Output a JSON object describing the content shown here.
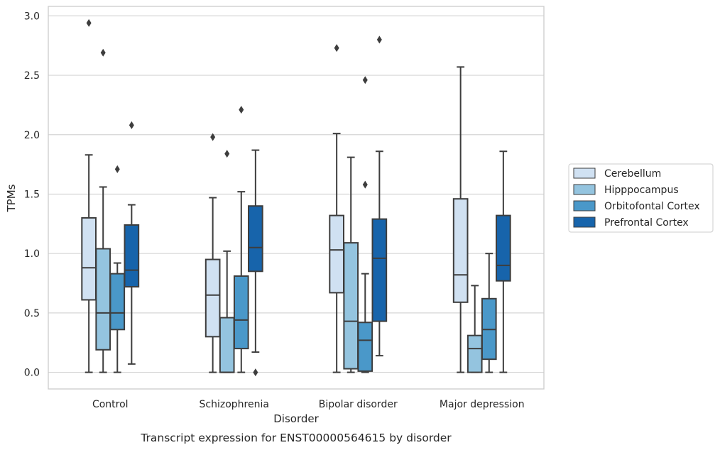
{
  "chart_data": {
    "type": "boxplot",
    "caption": "Transcript expression for ENST00000564615 by disorder",
    "xlabel": "Disorder",
    "ylabel": "TPMs",
    "ylim": [
      -0.14,
      3.08
    ],
    "yticks": [
      "0.0",
      "0.5",
      "1.0",
      "1.5",
      "2.0",
      "2.5",
      "3.0"
    ],
    "categories": [
      "Control",
      "Schizophrenia",
      "Bipolar disorder",
      "Major depression"
    ],
    "grid": true,
    "legend_position": "right",
    "series": [
      {
        "name": "Cerebellum",
        "color": "#d0e1f2",
        "boxes": [
          {
            "whislo": 0.0,
            "q1": 0.61,
            "med": 0.88,
            "q3": 1.3,
            "whishi": 1.83,
            "fliers": [
              2.94
            ]
          },
          {
            "whislo": 0.0,
            "q1": 0.3,
            "med": 0.65,
            "q3": 0.95,
            "whishi": 1.47,
            "fliers": [
              1.98
            ]
          },
          {
            "whislo": 0.0,
            "q1": 0.67,
            "med": 1.03,
            "q3": 1.32,
            "whishi": 2.01,
            "fliers": [
              2.73
            ]
          },
          {
            "whislo": 0.0,
            "q1": 0.59,
            "med": 0.82,
            "q3": 1.46,
            "whishi": 2.57,
            "fliers": []
          }
        ]
      },
      {
        "name": "Hipppocampus",
        "color": "#94c4df",
        "boxes": [
          {
            "whislo": 0.0,
            "q1": 0.19,
            "med": 0.5,
            "q3": 1.04,
            "whishi": 1.56,
            "fliers": [
              2.69
            ]
          },
          {
            "whislo": 0.0,
            "q1": 0.0,
            "med": 0.0,
            "q3": 0.46,
            "whishi": 1.02,
            "fliers": [
              1.84
            ]
          },
          {
            "whislo": 0.0,
            "q1": 0.03,
            "med": 0.43,
            "q3": 1.09,
            "whishi": 1.81,
            "fliers": []
          },
          {
            "whislo": 0.0,
            "q1": 0.0,
            "med": 0.2,
            "q3": 0.31,
            "whishi": 0.73,
            "fliers": []
          }
        ]
      },
      {
        "name": "Orbitofontal Cortex",
        "color": "#4a98c9",
        "boxes": [
          {
            "whislo": 0.0,
            "q1": 0.36,
            "med": 0.5,
            "q3": 0.83,
            "whishi": 0.92,
            "fliers": [
              1.71
            ]
          },
          {
            "whislo": 0.0,
            "q1": 0.2,
            "med": 0.44,
            "q3": 0.81,
            "whishi": 1.52,
            "fliers": [
              2.21
            ]
          },
          {
            "whislo": 0.0,
            "q1": 0.01,
            "med": 0.27,
            "q3": 0.42,
            "whishi": 0.83,
            "fliers": [
              1.58,
              2.46
            ]
          },
          {
            "whislo": 0.0,
            "q1": 0.11,
            "med": 0.36,
            "q3": 0.62,
            "whishi": 1.0,
            "fliers": []
          }
        ]
      },
      {
        "name": "Prefrontal Cortex",
        "color": "#1764ab",
        "boxes": [
          {
            "whislo": 0.07,
            "q1": 0.72,
            "med": 0.86,
            "q3": 1.24,
            "whishi": 1.41,
            "fliers": [
              2.08
            ]
          },
          {
            "whislo": 0.17,
            "q1": 0.85,
            "med": 1.05,
            "q3": 1.4,
            "whishi": 1.87,
            "fliers": [
              0.0
            ]
          },
          {
            "whislo": 0.14,
            "q1": 0.43,
            "med": 0.96,
            "q3": 1.29,
            "whishi": 1.86,
            "fliers": [
              2.8
            ]
          },
          {
            "whislo": 0.0,
            "q1": 0.77,
            "med": 0.9,
            "q3": 1.32,
            "whishi": 1.86,
            "fliers": []
          }
        ]
      }
    ]
  }
}
